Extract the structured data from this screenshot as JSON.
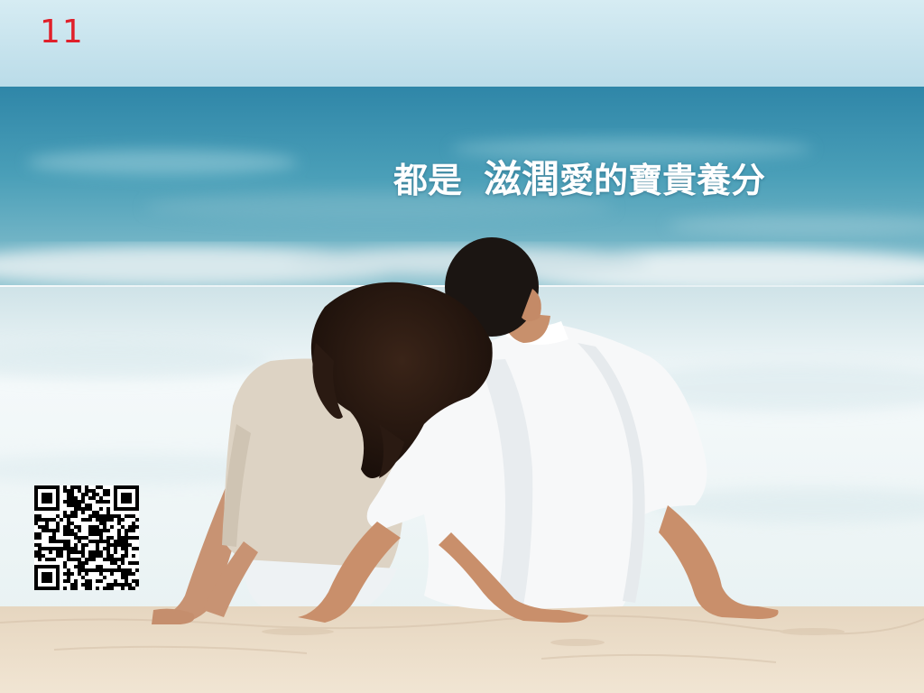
{
  "page": {
    "number": "11"
  },
  "headline": {
    "part_a": "都是",
    "part_b": "滋潤",
    "part_c": "愛的寶貴養分"
  },
  "colors": {
    "page_number": "#e0202a",
    "headline": "#ffffff",
    "sky_top": "#c9e4ee",
    "sea": "#3f97b2",
    "surf": "#f2f7f8",
    "sand": "#efe1cd"
  },
  "images": {
    "photo": "couple-on-beach-photo",
    "qr": "qr-code"
  }
}
